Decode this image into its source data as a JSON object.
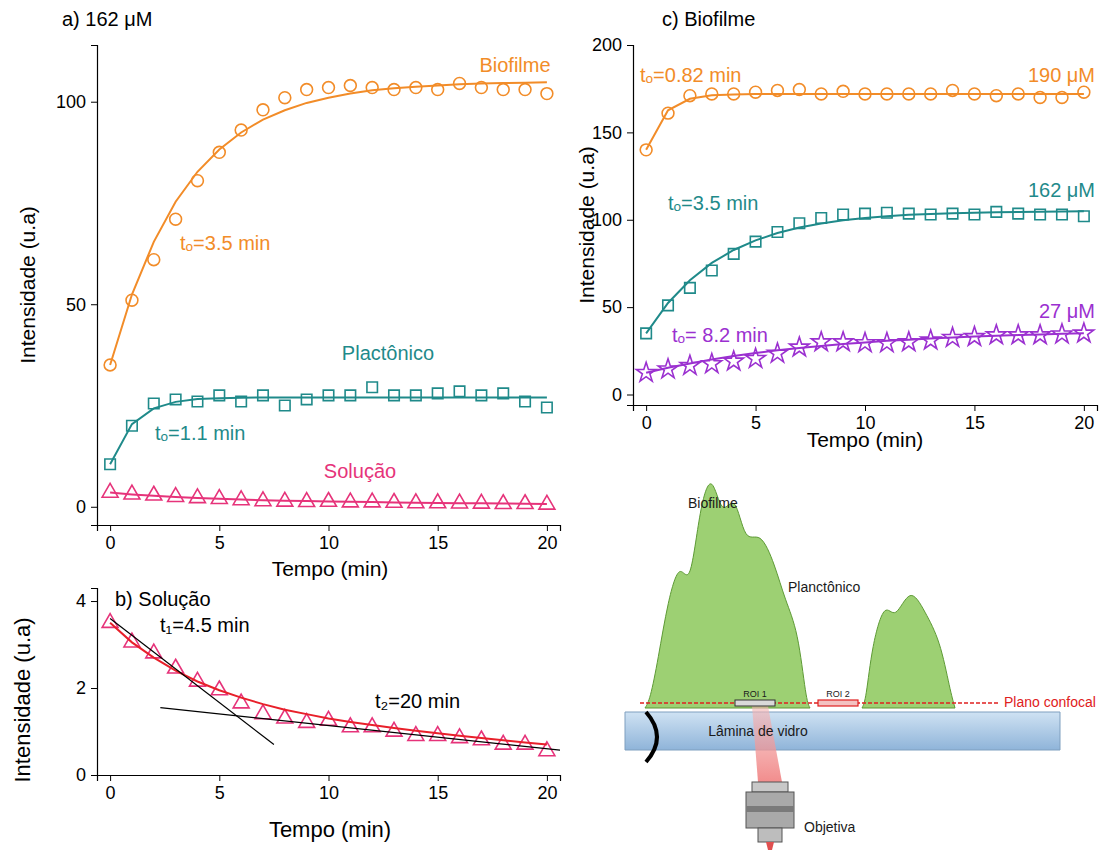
{
  "chart_data": [
    {
      "type": "scatter",
      "title": "a) 162 μM",
      "x_label": "Tempo (min)",
      "y_label": "Intensidade (u.a)",
      "x": [
        0,
        1,
        2,
        3,
        4,
        5,
        6,
        7,
        8,
        9,
        10,
        11,
        12,
        13,
        14,
        15,
        16,
        17,
        18,
        19,
        20
      ],
      "xlim": [
        -0.6,
        20.6
      ],
      "xticks": [
        0,
        5,
        10,
        15,
        20
      ],
      "ylim": [
        -4.5,
        114
      ],
      "yticks": [
        0,
        50,
        100
      ],
      "series": [
        {
          "name": "Biofilme",
          "type": "scatter",
          "marker": "circle",
          "color": "#f28c28",
          "label": "tₒ=3.5 min",
          "values": [
            35,
            51,
            61,
            71,
            80.5,
            87.5,
            93,
            98,
            101,
            103,
            103.5,
            104,
            103.5,
            103,
            103.5,
            103,
            104.5,
            103.5,
            103,
            103,
            102
          ]
        },
        {
          "type": "line",
          "line_style": "solid",
          "color": "#f28c28",
          "values": [
            35,
            52.4,
            65.4,
            75.3,
            82.7,
            88.2,
            92.4,
            95.6,
            97.9,
            99.7,
            101,
            102,
            102.8,
            103.3,
            103.7,
            104,
            104.3,
            104.5,
            104.6,
            104.7,
            104.8
          ]
        },
        {
          "name": "Plactônico",
          "type": "scatter",
          "marker": "square",
          "color": "#1f8a8a",
          "label": "tₒ=1.1 min",
          "values": [
            10.5,
            20,
            25.5,
            26.5,
            26,
            27.5,
            26,
            27.5,
            25,
            26.5,
            27.5,
            27.5,
            29.5,
            27.5,
            27.5,
            28,
            28.5,
            27.5,
            28,
            26,
            24.5
          ]
        },
        {
          "type": "line",
          "line_style": "solid",
          "color": "#1f8a8a",
          "values": [
            10.5,
            20.4,
            24.3,
            25.9,
            26.6,
            26.8,
            26.9,
            27,
            27,
            27,
            27,
            27,
            27,
            27,
            27,
            27,
            27,
            27,
            27,
            27,
            27
          ]
        },
        {
          "name": "Solução",
          "type": "scatter",
          "marker": "triangle",
          "color": "#e6337a",
          "values": [
            3.5,
            3.05,
            2.8,
            2.45,
            2.15,
            1.95,
            1.65,
            1.4,
            1.3,
            1.2,
            1.25,
            1.1,
            1.1,
            1,
            0.9,
            0.9,
            0.85,
            0.8,
            0.7,
            0.7,
            0.55
          ]
        },
        {
          "type": "line",
          "line_style": "solid",
          "color": "#e6337a",
          "values": [
            3.5,
            3.05,
            2.7,
            2.4,
            2.15,
            1.95,
            1.78,
            1.63,
            1.5,
            1.4,
            1.3,
            1.22,
            1.15,
            1.08,
            1.02,
            0.96,
            0.9,
            0.85,
            0.8,
            0.75,
            0.7
          ]
        }
      ]
    },
    {
      "type": "scatter",
      "title": "b) Solução",
      "x_label": "Tempo (min)",
      "y_label": "Intensidade (u.a)",
      "x": [
        0,
        1,
        2,
        3,
        4,
        5,
        6,
        7,
        8,
        9,
        10,
        11,
        12,
        13,
        14,
        15,
        16,
        17,
        18,
        19,
        20
      ],
      "xlim": [
        -0.6,
        20.6
      ],
      "xticks": [
        0,
        5,
        10,
        15,
        20
      ],
      "ylim": [
        0,
        4.3
      ],
      "yticks": [
        0,
        2,
        4
      ],
      "series": [
        {
          "type": "scatter",
          "marker": "triangle",
          "color": "#e6337a",
          "values": [
            3.5,
            3.05,
            2.8,
            2.45,
            2.15,
            1.95,
            1.65,
            1.4,
            1.3,
            1.2,
            1.25,
            1.1,
            1.1,
            1,
            0.9,
            0.9,
            0.85,
            0.8,
            0.7,
            0.7,
            0.55
          ]
        },
        {
          "type": "line",
          "line_style": "solid",
          "color": "#e8202a",
          "values": [
            3.5,
            3.05,
            2.7,
            2.4,
            2.15,
            1.95,
            1.78,
            1.63,
            1.5,
            1.4,
            1.3,
            1.22,
            1.15,
            1.08,
            1.02,
            0.96,
            0.9,
            0.85,
            0.8,
            0.75,
            0.7
          ]
        },
        {
          "type": "line",
          "line_style": "solid",
          "color": "#000000",
          "label": "t₁=4.5 min",
          "x": [
            0,
            7.5
          ],
          "values": [
            3.6,
            0.7
          ]
        },
        {
          "type": "line",
          "line_style": "solid",
          "color": "#000000",
          "label": "t₂=20 min",
          "x": [
            2.3,
            21
          ],
          "values": [
            1.55,
            0.55
          ]
        }
      ]
    },
    {
      "type": "scatter",
      "title": "c) Biofilme",
      "x_label": "Tempo (min)",
      "y_label": "Intensidade (u.a)",
      "x": [
        0,
        1,
        2,
        3,
        4,
        5,
        6,
        7,
        8,
        9,
        10,
        11,
        12,
        13,
        14,
        15,
        16,
        17,
        18,
        19,
        20
      ],
      "xlim": [
        -0.6,
        20.6
      ],
      "xticks": [
        0,
        5,
        10,
        15,
        20
      ],
      "ylim": [
        -6,
        200
      ],
      "yticks": [
        0,
        50,
        100,
        150,
        200
      ],
      "series": [
        {
          "name": "190 μM",
          "type": "scatter",
          "marker": "circle",
          "color": "#f28c28",
          "label": "tₒ=0.82 min",
          "values": [
            140,
            161,
            171,
            172,
            172,
            173,
            174,
            174.5,
            172,
            173.5,
            172,
            172,
            172,
            172,
            174,
            172,
            171,
            172,
            170,
            170,
            173
          ]
        },
        {
          "type": "line",
          "line_style": "solid",
          "color": "#f28c28",
          "values": [
            140,
            162.6,
            169.2,
            171.2,
            171.7,
            172,
            172,
            172,
            172,
            172,
            172,
            172,
            172,
            172,
            172,
            172,
            172,
            172,
            172,
            172,
            172
          ]
        },
        {
          "name": "162 μM",
          "type": "scatter",
          "marker": "square",
          "color": "#1f8a8a",
          "label": "tₒ=3.5 min",
          "values": [
            35,
            51,
            61,
            71,
            80.5,
            87.5,
            93,
            98,
            101,
            103,
            103.5,
            104,
            103.5,
            103,
            103.5,
            103,
            104.5,
            103.5,
            103,
            103,
            102
          ]
        },
        {
          "type": "line",
          "line_style": "solid",
          "color": "#1f8a8a",
          "values": [
            35,
            52.4,
            65.4,
            75.3,
            82.7,
            88.2,
            92.4,
            95.6,
            97.9,
            99.7,
            101,
            102,
            102.8,
            103.3,
            103.7,
            104,
            104.3,
            104.5,
            104.6,
            104.7,
            104.8
          ]
        },
        {
          "name": "27 μM",
          "type": "scatter",
          "marker": "star",
          "color": "#9b30d0",
          "label": "tₒ= 8.2 min",
          "values": [
            12.5,
            14.5,
            16.5,
            17.5,
            19,
            20.5,
            23.5,
            27,
            30,
            30,
            29.5,
            29.5,
            30,
            31,
            32.5,
            33,
            34,
            34,
            34,
            34.5,
            35
          ]
        },
        {
          "type": "line",
          "line_style": "solid",
          "color": "#9b30d0",
          "values": [
            12.5,
            15.3,
            17.8,
            20.1,
            22,
            23.7,
            25.3,
            26.6,
            27.8,
            28.9,
            29.8,
            30.7,
            31.4,
            32.1,
            32.6,
            33.2,
            33.6,
            34,
            34.3,
            34.7,
            35
          ]
        }
      ]
    }
  ],
  "diagram": {
    "labels": {
      "biofilm": "Biofilme",
      "planktonic": "Planctônico",
      "roi1": "ROI 1",
      "roi2": "ROI 2",
      "confocal_plane": "Plano confocal",
      "glass_slide": "Lâmina de vidro",
      "objective": "Objetiva"
    }
  }
}
